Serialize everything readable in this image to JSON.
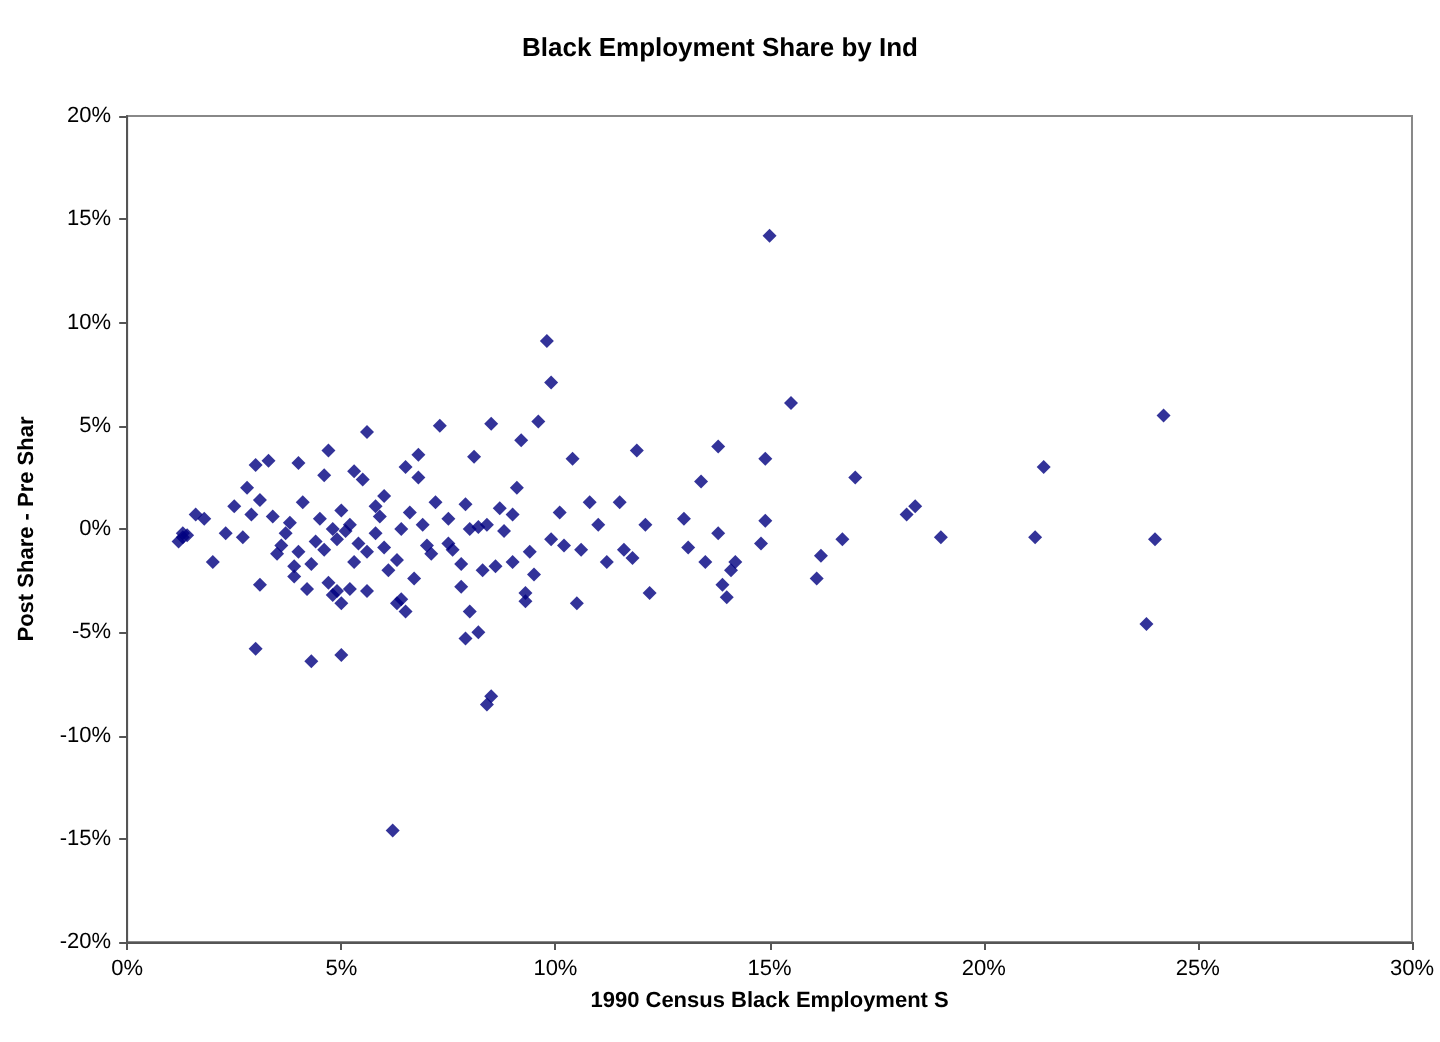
{
  "chart_data": {
    "type": "scatter",
    "title": "Black Employment Share by Ind",
    "xlabel": "1990 Census Black Employment S",
    "ylabel": "Post Share - Pre Shar",
    "marker": "diamond",
    "grid": false,
    "xlim": [
      0,
      30
    ],
    "ylim": [
      -20,
      20
    ],
    "xticks": [
      {
        "value": 0,
        "label": "0%"
      },
      {
        "value": 5,
        "label": "5%"
      },
      {
        "value": 10,
        "label": "10%"
      },
      {
        "value": 15,
        "label": "15%"
      },
      {
        "value": 20,
        "label": "20%"
      },
      {
        "value": 25,
        "label": "25%"
      },
      {
        "value": 30,
        "label": "30%"
      }
    ],
    "yticks": [
      {
        "value": -20,
        "label": "-20%"
      },
      {
        "value": -15,
        "label": "-15%"
      },
      {
        "value": -10,
        "label": "-10%"
      },
      {
        "value": -5,
        "label": "-5%"
      },
      {
        "value": 0,
        "label": "0%"
      },
      {
        "value": 5,
        "label": "5%"
      },
      {
        "value": 10,
        "label": "10%"
      },
      {
        "value": 15,
        "label": "15%"
      },
      {
        "value": 20,
        "label": "20%"
      }
    ],
    "series": [
      {
        "color": "#000080",
        "x": [
          15.0,
          9.8,
          9.9,
          15.5,
          24.2,
          21.4,
          17.0,
          18.4,
          18.2,
          19.0,
          21.2,
          24.0,
          23.8,
          16.1,
          16.2,
          16.7,
          14.9,
          14.9,
          14.8,
          13.8,
          13.4,
          13.8,
          13.5,
          13.9,
          14.0,
          14.1,
          14.2,
          13.0,
          13.1,
          12.2,
          12.1,
          11.9,
          11.8,
          11.6,
          11.5,
          11.2,
          11.0,
          10.8,
          10.6,
          10.4,
          10.5,
          10.2,
          10.1,
          9.9,
          9.6,
          9.5,
          9.2,
          9.3,
          9.3,
          9.1,
          9.0,
          9.0,
          8.8,
          8.7,
          8.5,
          8.6,
          8.5,
          8.4,
          8.3,
          8.2,
          8.1,
          8.2,
          7.9,
          8.0,
          7.9,
          7.8,
          7.6,
          7.5,
          7.3,
          7.2,
          6.9,
          6.8,
          6.8,
          7.0,
          7.1,
          6.5,
          6.4,
          6.5,
          6.3,
          6.2,
          6.0,
          5.9,
          6.1,
          5.8,
          5.6,
          5.6,
          5.5,
          5.3,
          5.1,
          5.0,
          5.0,
          5.0,
          4.8,
          4.7,
          4.6,
          4.5,
          4.4,
          4.3,
          4.2,
          4.1,
          4.0,
          4.0,
          3.9,
          3.8,
          3.7,
          3.6,
          3.5,
          3.4,
          3.3,
          3.1,
          3.0,
          3.0,
          3.1,
          2.9,
          2.8,
          2.7,
          2.5,
          2.3,
          2.0,
          1.8,
          1.6,
          1.3,
          1.2,
          1.3,
          1.4,
          4.8,
          4.9,
          5.2,
          5.4,
          5.6,
          5.8,
          6.4,
          6.6,
          6.0,
          6.3,
          6.7,
          5.3,
          4.6,
          4.3,
          8.0,
          8.4,
          7.5,
          7.8,
          9.4,
          3.9,
          4.7,
          5.2,
          4.9
        ],
        "values": [
          14.2,
          9.1,
          7.1,
          6.1,
          5.5,
          3.0,
          2.5,
          1.1,
          0.7,
          -0.4,
          -0.4,
          -0.5,
          -4.6,
          -2.4,
          -1.3,
          -0.5,
          3.4,
          0.4,
          -0.7,
          4.0,
          2.3,
          -0.2,
          -1.6,
          -2.7,
          -3.3,
          -2.0,
          -1.6,
          0.5,
          -0.9,
          -3.1,
          0.2,
          3.8,
          -1.4,
          -1.0,
          1.3,
          -1.6,
          0.2,
          1.3,
          -1.0,
          3.4,
          -3.6,
          -0.8,
          0.8,
          -0.5,
          5.2,
          -2.2,
          4.3,
          -3.1,
          -3.5,
          2.0,
          0.7,
          -1.6,
          -0.1,
          1.0,
          5.1,
          -1.8,
          -8.1,
          -8.5,
          -2.0,
          0.1,
          3.5,
          -5.0,
          -5.3,
          -4.0,
          1.2,
          -2.8,
          -1.0,
          0.5,
          5.0,
          1.3,
          0.2,
          3.6,
          2.5,
          -0.8,
          -1.2,
          3.0,
          -3.4,
          -4.0,
          -3.6,
          -14.6,
          1.6,
          0.6,
          -2.0,
          -0.2,
          -3.0,
          4.7,
          2.4,
          2.8,
          -0.1,
          0.9,
          -3.6,
          -6.1,
          -3.2,
          3.8,
          2.6,
          0.5,
          -0.6,
          -6.4,
          -2.9,
          1.3,
          3.2,
          -1.1,
          -1.8,
          0.3,
          -0.2,
          -0.8,
          -1.2,
          0.6,
          3.3,
          1.4,
          3.1,
          -5.8,
          -2.7,
          0.7,
          2.0,
          -0.4,
          1.1,
          -0.2,
          -1.6,
          0.5,
          0.7,
          -0.2,
          -0.6,
          -0.4,
          -0.3,
          0.0,
          -0.5,
          0.2,
          -0.7,
          -1.1,
          1.1,
          0.0,
          0.8,
          -0.9,
          -1.5,
          -2.4,
          -1.6,
          -1.0,
          -1.7,
          0.0,
          0.2,
          -0.7,
          -1.7,
          -1.1,
          -2.3,
          -2.6,
          -2.9,
          -3.0
        ]
      }
    ]
  }
}
